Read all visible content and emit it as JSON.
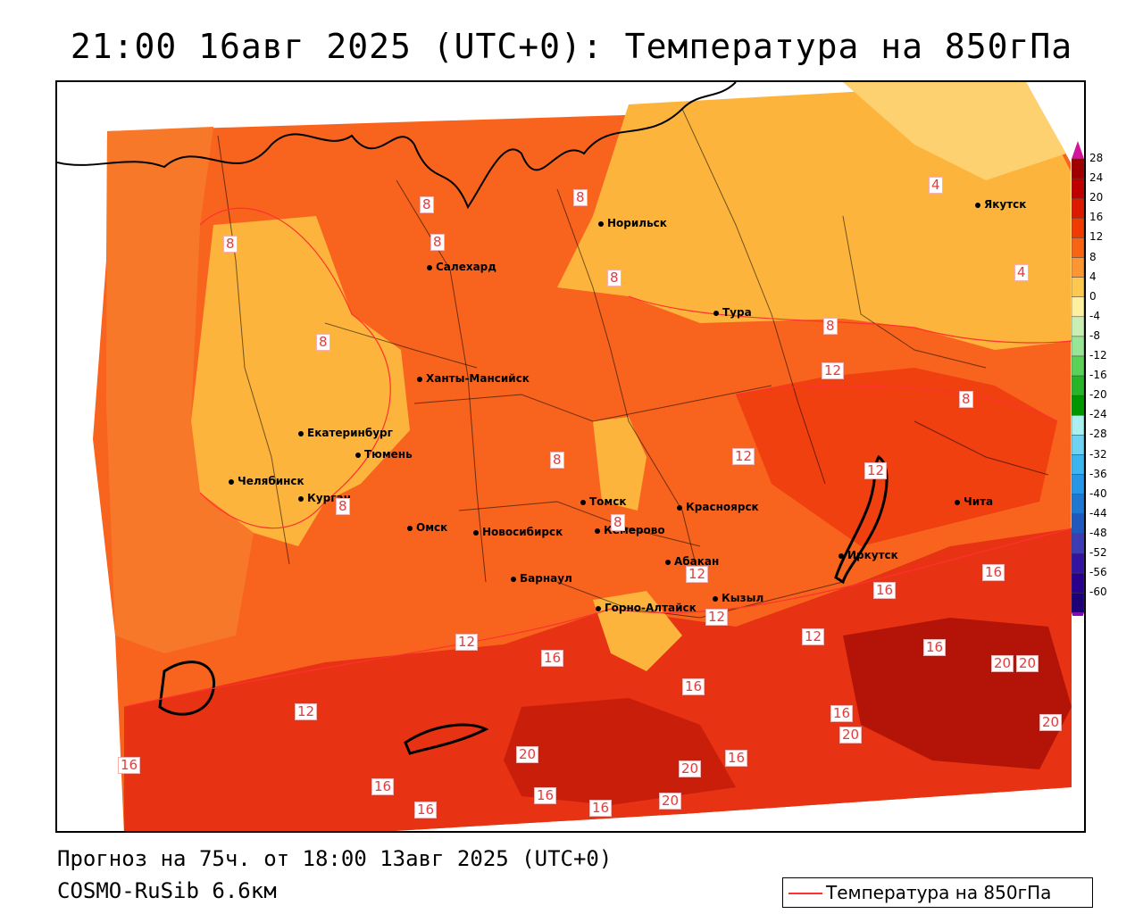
{
  "title": "21:00 16авг 2025 (UTC+0): Температура на 850гПа",
  "footer": {
    "forecast": "Прогноз на 75ч. от 18:00 13авг 2025 (UTC+0)",
    "model": "COSMO-RuSib 6.6км"
  },
  "legend": {
    "label": "Температура на 850гПа",
    "line_color": "#ff3030"
  },
  "colorbar": {
    "ticks": [
      "28",
      "24",
      "20",
      "16",
      "12",
      "8",
      "4",
      "0",
      "-4",
      "-8",
      "-12",
      "-16",
      "-20",
      "-24",
      "-28",
      "-32",
      "-36",
      "-40",
      "-44",
      "-48",
      "-52",
      "-56",
      "-60"
    ],
    "colors": [
      "#a00000",
      "#c00000",
      "#dc1a00",
      "#f03c00",
      "#f86414",
      "#fc9632",
      "#fdc850",
      "#fff0a0",
      "#c8f0b4",
      "#96e696",
      "#5ad25a",
      "#28b428",
      "#009600",
      "#aaf0f0",
      "#6ed2f0",
      "#3cb4f0",
      "#2896e6",
      "#1e78d2",
      "#1e5abe",
      "#3c3cb4",
      "#3214a0",
      "#28008c",
      "#1e0078"
    ],
    "top_arrow_color": "#d2149b",
    "bottom_arrow_color": "#8c00c8"
  },
  "cities": [
    {
      "name": "Норильск"
    },
    {
      "name": "Якутск"
    },
    {
      "name": "Салехард"
    },
    {
      "name": "Тура"
    },
    {
      "name": "Ханты-Мансийск"
    },
    {
      "name": "Екатеринбург"
    },
    {
      "name": "Тюмень"
    },
    {
      "name": "Челябинск"
    },
    {
      "name": "Курган"
    },
    {
      "name": "Омск"
    },
    {
      "name": "Новосибирск"
    },
    {
      "name": "Томск"
    },
    {
      "name": "Кемерово"
    },
    {
      "name": "Красноярск"
    },
    {
      "name": "Барнаул"
    },
    {
      "name": "Абакан"
    },
    {
      "name": "Иркутск"
    },
    {
      "name": "Чита"
    },
    {
      "name": "Горно-Алтайск"
    },
    {
      "name": "Кызыл"
    }
  ],
  "isotherm_labels": [
    "8",
    "8",
    "8",
    "8",
    "8",
    "8",
    "8",
    "8",
    "8",
    "8",
    "8",
    "4",
    "4",
    "12",
    "12",
    "12",
    "12",
    "12",
    "12",
    "12",
    "12",
    "16",
    "16",
    "16",
    "16",
    "16",
    "16",
    "16",
    "16",
    "16",
    "16",
    "16",
    "16",
    "20",
    "20",
    "20",
    "20",
    "20",
    "20",
    "20"
  ]
}
